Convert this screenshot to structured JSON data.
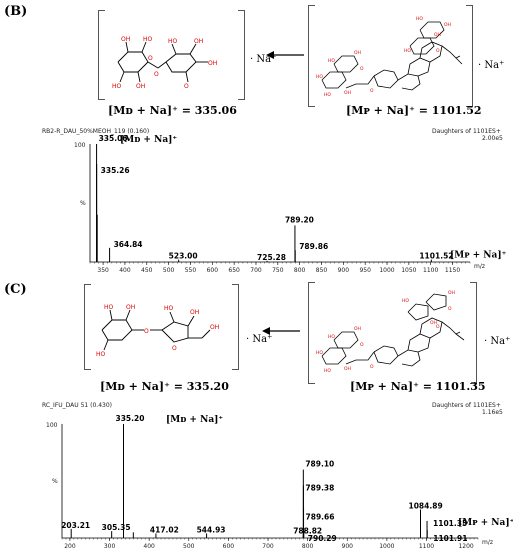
{
  "panels": [
    {
      "label": "(B)",
      "left_ion": "[Mᴅ + Na]⁺ = 335.06",
      "right_ion": "[Mᴘ + Na]⁺ = 1101.52",
      "na_left": "· Na⁺",
      "na_right": "· Na⁺",
      "spectrum": {
        "header_left": "RB2-R_DAU_50%MEOH_119 (0.160)",
        "header_right": "Daughters of 1101ES+",
        "header_intensity": "2.00e5",
        "base_peak_anno": "[Mᴅ + Na]⁺",
        "parent_anno": "[Mᴘ + Na]⁺",
        "y_top_label": "100",
        "y_mid_label": "%",
        "x_unit": "m/z"
      }
    },
    {
      "label": "(C)",
      "left_ion": "[Mᴅ + Na]⁺ = 335.20",
      "right_ion": "[Mᴘ + Na]⁺ = 1101.35",
      "na_left": "· Na⁺",
      "na_right": "· Na⁺",
      "spectrum": {
        "header_left": "RC_IFU_DAU 51 (0.430)",
        "header_right": "Daughters of 1101ES+",
        "header_intensity": "1.16e5",
        "base_peak_anno": "[Mᴅ + Na]⁺",
        "parent_anno": "[Mᴘ + Na]⁺",
        "y_top_label": "100",
        "y_mid_label": "%",
        "x_unit": "m/z"
      }
    }
  ],
  "chart_data": [
    {
      "type": "bar",
      "title": "",
      "xlabel": "m/z",
      "ylabel": "%",
      "xlim": [
        320,
        1190
      ],
      "ylim": [
        0,
        100
      ],
      "x_ticks": [
        350,
        400,
        450,
        500,
        550,
        600,
        650,
        700,
        750,
        800,
        850,
        900,
        950,
        1000,
        1050,
        1100,
        1150
      ],
      "peaks": [
        {
          "x": 335.06,
          "y": 100,
          "label": "335.06"
        },
        {
          "x": 335.26,
          "y": 83,
          "label": "335.26"
        },
        {
          "x": 336.5,
          "y": 40,
          "label": ""
        },
        {
          "x": 364.84,
          "y": 12,
          "label": "364.84"
        },
        {
          "x": 523.0,
          "y": 2,
          "label": "523.00"
        },
        {
          "x": 725.28,
          "y": 1,
          "label": "725.28"
        },
        {
          "x": 789.2,
          "y": 31,
          "label": "789.20"
        },
        {
          "x": 789.86,
          "y": 10,
          "label": "789.86"
        },
        {
          "x": 1101.52,
          "y": 2,
          "label": "1101.52"
        }
      ]
    },
    {
      "type": "bar",
      "title": "",
      "xlabel": "m/z",
      "ylabel": "%",
      "xlim": [
        180,
        1230
      ],
      "ylim": [
        0,
        100
      ],
      "x_ticks": [
        200,
        300,
        400,
        500,
        600,
        700,
        800,
        900,
        1000,
        1100,
        1200
      ],
      "peaks": [
        {
          "x": 203.21,
          "y": 8,
          "label": "203.21"
        },
        {
          "x": 305.35,
          "y": 6,
          "label": "305.35"
        },
        {
          "x": 335.2,
          "y": 100,
          "label": "335.20"
        },
        {
          "x": 360.0,
          "y": 5,
          "label": ""
        },
        {
          "x": 417.02,
          "y": 4,
          "label": "417.02"
        },
        {
          "x": 544.93,
          "y": 4,
          "label": "544.93"
        },
        {
          "x": 788.82,
          "y": 3,
          "label": "788.82"
        },
        {
          "x": 789.1,
          "y": 60,
          "label": "789.10"
        },
        {
          "x": 789.38,
          "y": 46,
          "label": "789.38"
        },
        {
          "x": 789.66,
          "y": 26,
          "label": "789.66"
        },
        {
          "x": 790.29,
          "y": 7,
          "label": "790.29"
        },
        {
          "x": 1084.89,
          "y": 25,
          "label": "1084.89"
        },
        {
          "x": 1101.35,
          "y": 15,
          "label": "1101.35"
        },
        {
          "x": 1101.91,
          "y": 7,
          "label": "1101.91"
        }
      ]
    }
  ]
}
